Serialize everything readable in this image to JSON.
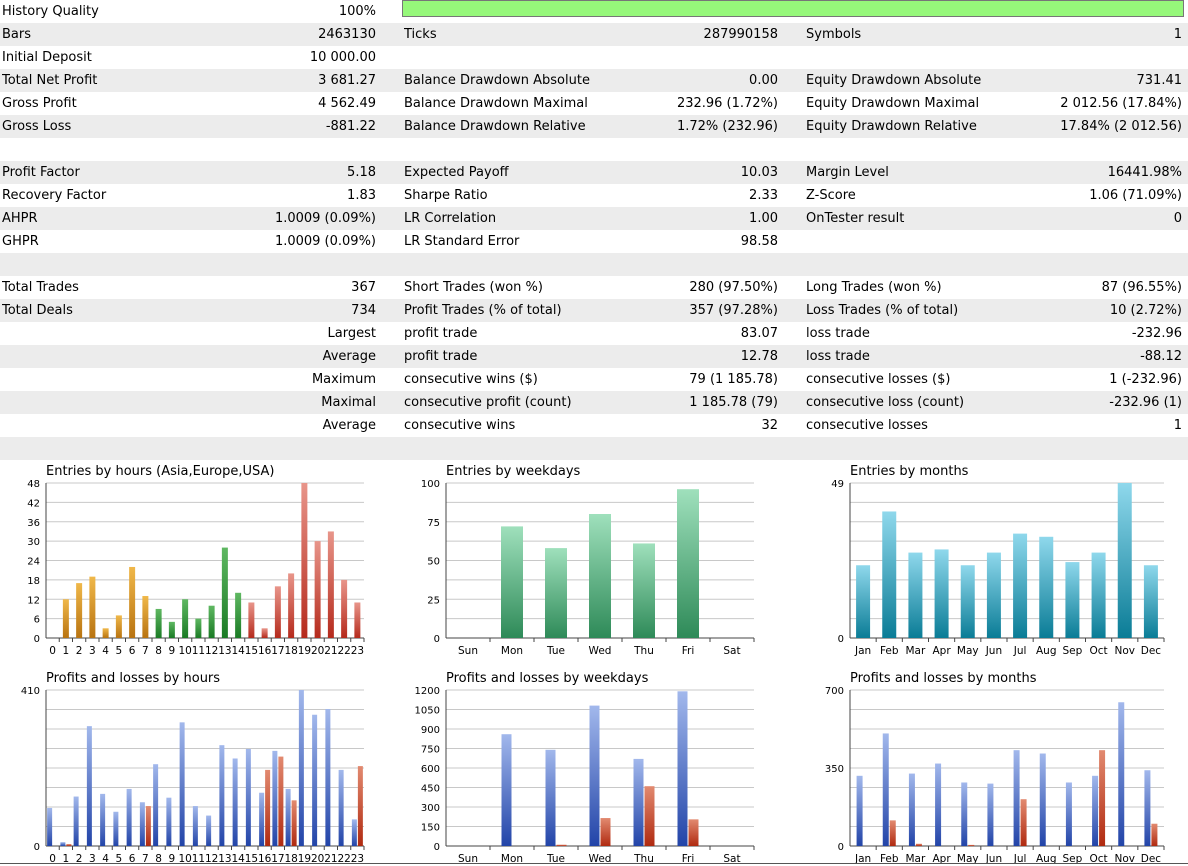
{
  "summary": {
    "history_quality": {
      "label": "History Quality",
      "value": "100%",
      "fill": 1.0
    },
    "rows": [
      {
        "l1": "Bars",
        "v1": "2463130",
        "l2": "Ticks",
        "v2": "287990158",
        "l3": "Symbols",
        "v3": "1"
      },
      {
        "l1": "Initial Deposit",
        "v1": "10 000.00",
        "l2": "",
        "v2": "",
        "l3": "",
        "v3": ""
      },
      {
        "l1": "Total Net Profit",
        "v1": "3 681.27",
        "l2": "Balance Drawdown Absolute",
        "v2": "0.00",
        "l3": "Equity Drawdown Absolute",
        "v3": "731.41"
      },
      {
        "l1": "Gross Profit",
        "v1": "4 562.49",
        "l2": "Balance Drawdown Maximal",
        "v2": "232.96 (1.72%)",
        "l3": "Equity Drawdown Maximal",
        "v3": "2 012.56 (17.84%)"
      },
      {
        "l1": "Gross Loss",
        "v1": "-881.22",
        "l2": "Balance Drawdown Relative",
        "v2": "1.72% (232.96)",
        "l3": "Equity Drawdown Relative",
        "v3": "17.84% (2 012.56)"
      },
      {
        "l1": "",
        "v1": "",
        "l2": "",
        "v2": "",
        "l3": "",
        "v3": ""
      },
      {
        "l1": "Profit Factor",
        "v1": "5.18",
        "l2": "Expected Payoff",
        "v2": "10.03",
        "l3": "Margin Level",
        "v3": "16441.98%"
      },
      {
        "l1": "Recovery Factor",
        "v1": "1.83",
        "l2": "Sharpe Ratio",
        "v2": "2.33",
        "l3": "Z-Score",
        "v3": "1.06 (71.09%)"
      },
      {
        "l1": "AHPR",
        "v1": "1.0009 (0.09%)",
        "l2": "LR Correlation",
        "v2": "1.00",
        "l3": "OnTester result",
        "v3": "0"
      },
      {
        "l1": "GHPR",
        "v1": "1.0009 (0.09%)",
        "l2": "LR Standard Error",
        "v2": "98.58",
        "l3": "",
        "v3": ""
      },
      {
        "l1": "",
        "v1": "",
        "l2": "",
        "v2": "",
        "l3": "",
        "v3": ""
      },
      {
        "l1": "Total Trades",
        "v1": "367",
        "l2": "Short Trades (won %)",
        "v2": "280 (97.50%)",
        "l3": "Long Trades (won %)",
        "v3": "87 (96.55%)"
      },
      {
        "l1": "Total Deals",
        "v1": "734",
        "l2": "Profit Trades (% of total)",
        "v2": "357 (97.28%)",
        "l3": "Loss Trades (% of total)",
        "v3": "10 (2.72%)"
      },
      {
        "l1": "",
        "v1": "Largest",
        "l2": "profit trade",
        "v2": "83.07",
        "l3": "loss trade",
        "v3": "-232.96"
      },
      {
        "l1": "",
        "v1": "Average",
        "l2": "profit trade",
        "v2": "12.78",
        "l3": "loss trade",
        "v3": "-88.12"
      },
      {
        "l1": "",
        "v1": "Maximum",
        "l2": "consecutive wins ($)",
        "v2": "79 (1 185.78)",
        "l3": "consecutive losses ($)",
        "v3": "1 (-232.96)"
      },
      {
        "l1": "",
        "v1": "Maximal",
        "l2": "consecutive profit (count)",
        "v2": "1 185.78 (79)",
        "l3": "consecutive loss (count)",
        "v3": "-232.96 (1)"
      },
      {
        "l1": "",
        "v1": "Average",
        "l2": "consecutive wins",
        "v2": "32",
        "l3": "consecutive losses",
        "v3": "1"
      },
      {
        "l1": "",
        "v1": "",
        "l2": "",
        "v2": "",
        "l3": "",
        "v3": ""
      }
    ]
  },
  "colors": {
    "quality_fill": "#96f87a",
    "grid": "#c8c8c8",
    "axis": "#444444",
    "hours_asia_light": "#f0b84a",
    "hours_asia_dark": "#b87310",
    "hours_europe_light": "#5fb862",
    "hours_europe_dark": "#1a7a24",
    "hours_usa_light": "#e8958a",
    "hours_usa_dark": "#b52a1c",
    "weekday_light": "#9fe0bc",
    "weekday_dark": "#2e8a58",
    "month_light": "#8fd8ec",
    "month_dark": "#0a7c96",
    "profit_light": "#a2b8ec",
    "profit_dark": "#2244a8",
    "loss_light": "#e28a70",
    "loss_dark": "#b02a10"
  },
  "chart_data": [
    {
      "id": "entries-hours",
      "type": "bar",
      "title": "Entries by hours (Asia,Europe,USA)",
      "categories": [
        "0",
        "1",
        "2",
        "3",
        "4",
        "5",
        "6",
        "7",
        "8",
        "9",
        "10",
        "11",
        "12",
        "13",
        "14",
        "15",
        "16",
        "17",
        "18",
        "19",
        "20",
        "21",
        "22",
        "23"
      ],
      "values": [
        0,
        12,
        17,
        19,
        3,
        7,
        22,
        13,
        9,
        5,
        12,
        6,
        10,
        28,
        14,
        11,
        3,
        16,
        20,
        48,
        30,
        33,
        18,
        11
      ],
      "groups": [
        "asia",
        "asia",
        "asia",
        "asia",
        "asia",
        "asia",
        "asia",
        "asia",
        "europe",
        "europe",
        "europe",
        "europe",
        "europe",
        "europe",
        "europe",
        "usa",
        "usa",
        "usa",
        "usa",
        "usa",
        "usa",
        "usa",
        "usa",
        "usa"
      ],
      "yticks": [
        0,
        6,
        12,
        18,
        24,
        30,
        36,
        42,
        48
      ],
      "ylim": [
        0,
        48
      ]
    },
    {
      "id": "entries-weekdays",
      "type": "bar",
      "title": "Entries by weekdays",
      "categories": [
        "Sun",
        "Mon",
        "Tue",
        "Wed",
        "Thu",
        "Fri",
        "Sat"
      ],
      "values": [
        0,
        72,
        58,
        80,
        61,
        96,
        0
      ],
      "yticks": [
        0,
        25,
        50,
        75,
        100
      ],
      "ylim": [
        0,
        100
      ]
    },
    {
      "id": "entries-months",
      "type": "bar",
      "title": "Entries by months",
      "categories": [
        "Jan",
        "Feb",
        "Mar",
        "Apr",
        "May",
        "Jun",
        "Jul",
        "Aug",
        "Sep",
        "Oct",
        "Nov",
        "Dec"
      ],
      "values": [
        23,
        40,
        27,
        28,
        23,
        27,
        33,
        32,
        24,
        27,
        49,
        23
      ],
      "yticks": [
        0,
        49
      ],
      "ylim": [
        0,
        49
      ]
    },
    {
      "id": "pl-hours",
      "type": "bar",
      "title": "Profits and losses by hours",
      "categories": [
        "0",
        "1",
        "2",
        "3",
        "4",
        "5",
        "6",
        "7",
        "8",
        "9",
        "10",
        "11",
        "12",
        "13",
        "14",
        "15",
        "16",
        "17",
        "18",
        "19",
        "20",
        "21",
        "22",
        "23"
      ],
      "series": [
        {
          "values": [
            100,
            10,
            130,
            315,
            137,
            90,
            150,
            115,
            215,
            127,
            325,
            105,
            80,
            265,
            230,
            255,
            140,
            250,
            150,
            410,
            345,
            360,
            200,
            70
          ]
        },
        {
          "values": [
            0,
            5,
            0,
            0,
            0,
            0,
            0,
            105,
            0,
            0,
            0,
            0,
            0,
            0,
            0,
            0,
            200,
            235,
            120,
            0,
            0,
            0,
            0,
            210
          ]
        }
      ],
      "yticks": [
        0,
        410
      ],
      "ylim": [
        0,
        410
      ]
    },
    {
      "id": "pl-weekdays",
      "type": "bar",
      "title": "Profits and losses by weekdays",
      "categories": [
        "Sun",
        "Mon",
        "Tue",
        "Wed",
        "Thu",
        "Fri",
        "Sat"
      ],
      "series": [
        {
          "values": [
            0,
            860,
            740,
            1080,
            670,
            1190,
            0
          ]
        },
        {
          "values": [
            0,
            0,
            10,
            215,
            460,
            205,
            0
          ]
        }
      ],
      "yticks": [
        0,
        150,
        300,
        450,
        600,
        750,
        900,
        1050,
        1200
      ],
      "ylim": [
        0,
        1200
      ]
    },
    {
      "id": "pl-months",
      "type": "bar",
      "title": "Profits and losses by months",
      "categories": [
        "Jan",
        "Feb",
        "Mar",
        "Apr",
        "May",
        "Jun",
        "Jul",
        "Aug",
        "Sep",
        "Oct",
        "Nov",
        "Dec"
      ],
      "series": [
        {
          "values": [
            315,
            505,
            325,
            370,
            285,
            280,
            430,
            415,
            285,
            315,
            645,
            340
          ]
        },
        {
          "values": [
            0,
            115,
            10,
            0,
            5,
            0,
            210,
            0,
            0,
            430,
            0,
            100
          ]
        }
      ],
      "yticks": [
        0,
        350,
        700
      ],
      "ylim": [
        0,
        700
      ]
    }
  ]
}
